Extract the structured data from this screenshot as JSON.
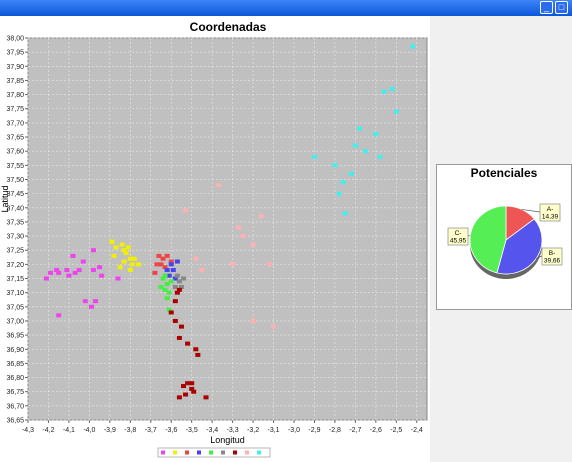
{
  "window": {
    "minimize_glyph": "_",
    "maximize_glyph": "□",
    "close_glyph": "×"
  },
  "scatter": {
    "title": "Coordenadas",
    "xlabel": "Longitud",
    "ylabel": "Latitud",
    "xlim": [
      -4.3,
      -2.35
    ],
    "ylim": [
      36.65,
      38.0
    ],
    "xticks": [
      "-4,3",
      "-4,2",
      "-4,1",
      "-4,0",
      "-3,9",
      "-3,8",
      "-3,7",
      "-3,6",
      "-3,5",
      "-3,4",
      "-3,3",
      "-3,2",
      "-3,1",
      "-3,0",
      "-2,9",
      "-2,8",
      "-2,7",
      "-2,6",
      "-2,5",
      "-2,4"
    ],
    "yticks": [
      "36,65",
      "36,70",
      "36,75",
      "36,80",
      "36,85",
      "36,90",
      "36,95",
      "37,00",
      "37,05",
      "37,10",
      "37,15",
      "37,20",
      "37,25",
      "37,30",
      "37,35",
      "37,40",
      "37,45",
      "37,50",
      "37,55",
      "37,60",
      "37,65",
      "37,70",
      "37,75",
      "37,80",
      "37,85",
      "37,90",
      "37,95",
      "38,00"
    ]
  },
  "chart_data": [
    {
      "type": "scatter",
      "title": "Coordenadas",
      "xlabel": "Longitud",
      "ylabel": "Latitud",
      "xlim": [
        -4.3,
        -2.35
      ],
      "ylim": [
        36.65,
        38.0
      ],
      "grid": true,
      "legend": "bottom",
      "series": [
        {
          "color": "#ee44ee",
          "points": [
            [
              -4.21,
              37.15
            ],
            [
              -4.19,
              37.17
            ],
            [
              -4.16,
              37.18
            ],
            [
              -4.15,
              37.17
            ],
            [
              -4.11,
              37.18
            ],
            [
              -4.07,
              37.17
            ],
            [
              -4.05,
              37.18
            ],
            [
              -4.03,
              37.21
            ],
            [
              -3.98,
              37.18
            ],
            [
              -3.98,
              37.25
            ],
            [
              -3.95,
              37.19
            ],
            [
              -4.02,
              37.07
            ],
            [
              -3.97,
              37.07
            ],
            [
              -4.15,
              37.02
            ],
            [
              -3.99,
              37.05
            ],
            [
              -3.86,
              37.15
            ],
            [
              -4.1,
              37.16
            ],
            [
              -4.08,
              37.23
            ],
            [
              -3.94,
              37.16
            ]
          ]
        },
        {
          "color": "#f0f000",
          "points": [
            [
              -3.89,
              37.28
            ],
            [
              -3.84,
              37.27
            ],
            [
              -3.82,
              37.24
            ],
            [
              -3.8,
              37.22
            ],
            [
              -3.79,
              37.2
            ],
            [
              -3.83,
              37.21
            ],
            [
              -3.85,
              37.19
            ],
            [
              -3.81,
              37.26
            ],
            [
              -3.78,
              37.22
            ],
            [
              -3.8,
              37.18
            ],
            [
              -3.88,
              37.23
            ],
            [
              -3.76,
              37.2
            ],
            [
              -3.87,
              37.26
            ],
            [
              -3.83,
              37.25
            ]
          ]
        },
        {
          "color": "#ee4444",
          "points": [
            [
              -3.66,
              37.23
            ],
            [
              -3.64,
              37.22
            ],
            [
              -3.67,
              37.2
            ],
            [
              -3.68,
              37.17
            ],
            [
              -3.65,
              37.2
            ],
            [
              -3.63,
              37.19
            ],
            [
              -3.6,
              37.21
            ],
            [
              -3.62,
              37.23
            ]
          ]
        },
        {
          "color": "#4444ee",
          "points": [
            [
              -3.6,
              37.2
            ],
            [
              -3.59,
              37.18
            ],
            [
              -3.61,
              37.16
            ],
            [
              -3.57,
              37.21
            ],
            [
              -3.58,
              37.15
            ],
            [
              -3.62,
              37.18
            ]
          ]
        },
        {
          "color": "#44ee44",
          "points": [
            [
              -3.64,
              37.15
            ],
            [
              -3.62,
              37.13
            ],
            [
              -3.63,
              37.11
            ],
            [
              -3.61,
              37.1
            ],
            [
              -3.65,
              37.12
            ],
            [
              -3.6,
              37.14
            ],
            [
              -3.62,
              37.08
            ],
            [
              -3.61,
              37.04
            ],
            [
              -3.63,
              37.16
            ]
          ]
        },
        {
          "color": "#888888",
          "points": [
            [
              -3.57,
              37.16
            ],
            [
              -3.56,
              37.14
            ],
            [
              -3.55,
              37.12
            ],
            [
              -3.58,
              37.12
            ],
            [
              -3.54,
              37.15
            ]
          ]
        },
        {
          "color": "#aa0000",
          "points": [
            [
              -3.57,
              37.1
            ],
            [
              -3.56,
              37.11
            ],
            [
              -3.58,
              37.07
            ],
            [
              -3.6,
              37.03
            ],
            [
              -3.58,
              37.0
            ],
            [
              -3.55,
              36.98
            ],
            [
              -3.56,
              36.94
            ],
            [
              -3.52,
              36.92
            ],
            [
              -3.48,
              36.9
            ],
            [
              -3.47,
              36.88
            ],
            [
              -3.52,
              36.78
            ],
            [
              -3.5,
              36.76
            ],
            [
              -3.53,
              36.74
            ],
            [
              -3.49,
              36.75
            ],
            [
              -3.43,
              36.73
            ],
            [
              -3.56,
              36.73
            ],
            [
              -3.54,
              36.77
            ],
            [
              -3.5,
              36.78
            ]
          ]
        },
        {
          "color": "#ffb0b0",
          "points": [
            [
              -3.53,
              37.39
            ],
            [
              -3.37,
              37.48
            ],
            [
              -3.25,
              37.3
            ],
            [
              -3.27,
              37.33
            ],
            [
              -3.2,
              37.27
            ],
            [
              -3.16,
              37.37
            ],
            [
              -3.12,
              37.2
            ],
            [
              -3.3,
              37.2
            ],
            [
              -3.45,
              37.18
            ],
            [
              -3.1,
              36.98
            ],
            [
              -3.48,
              37.22
            ],
            [
              -3.2,
              37.0
            ]
          ]
        },
        {
          "color": "#44eeee",
          "points": [
            [
              -2.42,
              37.97
            ],
            [
              -2.52,
              37.82
            ],
            [
              -2.56,
              37.81
            ],
            [
              -2.5,
              37.74
            ],
            [
              -2.6,
              37.66
            ],
            [
              -2.65,
              37.6
            ],
            [
              -2.58,
              37.58
            ],
            [
              -2.72,
              37.52
            ],
            [
              -2.76,
              37.49
            ],
            [
              -2.8,
              37.55
            ],
            [
              -2.9,
              37.58
            ],
            [
              -2.78,
              37.45
            ],
            [
              -2.75,
              37.38
            ],
            [
              -2.7,
              37.62
            ],
            [
              -2.68,
              37.68
            ]
          ]
        }
      ]
    },
    {
      "type": "pie",
      "title": "Potenciales",
      "slices": [
        {
          "label": "A-",
          "value": 14.39,
          "display": "14,39",
          "color": "#ee5555"
        },
        {
          "label": "B-",
          "value": 39.66,
          "display": "39,66",
          "color": "#5555ee"
        },
        {
          "label": "C-",
          "value": 45.95,
          "display": "45,95",
          "color": "#55ee55"
        }
      ]
    }
  ]
}
